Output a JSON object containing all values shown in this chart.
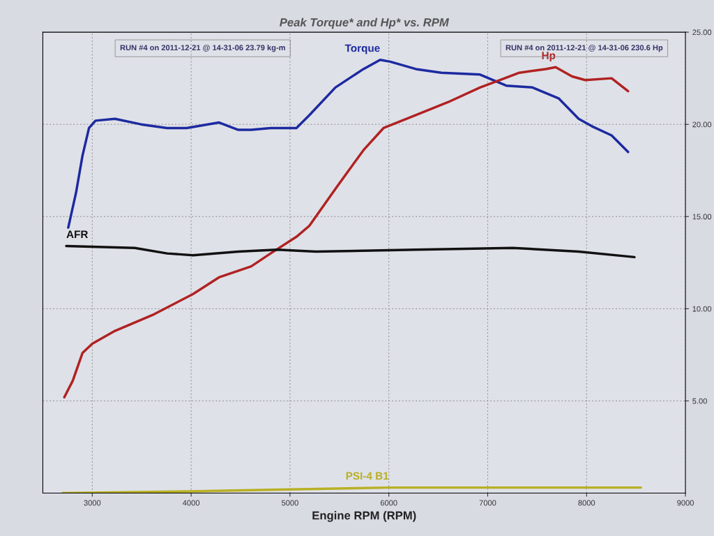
{
  "chart_data": {
    "type": "line",
    "title": "Peak Torque* and Hp* vs. RPM",
    "xlabel": "Engine RPM (RPM)",
    "annotations": [
      "RUN #4 on 2011-12-21 @ 14-31-06 23.79 kg-m",
      "RUN #4 on 2011-12-21 @ 14-31-06 230.6 Hp"
    ],
    "xlim": [
      2500,
      9000
    ],
    "xticks": [
      3000,
      4000,
      5000,
      6000,
      7000,
      8000,
      9000
    ],
    "ylim": [
      0,
      25
    ],
    "yticks": [
      {
        "value": 5,
        "label": "5.00"
      },
      {
        "value": 10,
        "label": "10.00"
      },
      {
        "value": 15,
        "label": "15.00"
      },
      {
        "value": 20,
        "label": "20.00"
      },
      {
        "value": 25,
        "label": "25.00"
      }
    ],
    "grid": true,
    "legend": false,
    "marker": "none",
    "line_style": "solid",
    "series": [
      {
        "name": "Torque",
        "color": "#1c2aa0",
        "x": [
          2757,
          2836,
          2901,
          2967,
          3033,
          3230,
          3493,
          3757,
          3954,
          4283,
          4477,
          4608,
          4804,
          5065,
          5196,
          5459,
          5743,
          5912,
          6014,
          6273,
          6532,
          6922,
          7187,
          7453,
          7720,
          7920,
          8053,
          8253,
          8420
        ],
        "values": [
          14.4,
          16.3,
          18.3,
          19.8,
          20.2,
          20.3,
          20.0,
          19.8,
          19.8,
          20.1,
          19.7,
          19.7,
          19.8,
          19.8,
          20.5,
          22.0,
          23.0,
          23.5,
          23.4,
          23.0,
          22.8,
          22.7,
          22.1,
          22.0,
          21.4,
          20.3,
          19.9,
          19.4,
          18.5
        ]
      },
      {
        "name": "Hp",
        "color": "#b02222",
        "x": [
          2717,
          2803,
          2901,
          3000,
          3230,
          3625,
          4020,
          4281,
          4608,
          4804,
          5065,
          5196,
          5459,
          5743,
          5946,
          6273,
          6597,
          6922,
          7120,
          7320,
          7587,
          7687,
          7853,
          7987,
          8253,
          8420
        ],
        "values": [
          5.2,
          6.1,
          7.6,
          8.1,
          8.8,
          9.7,
          10.8,
          11.7,
          12.3,
          13.0,
          13.9,
          14.5,
          16.5,
          18.6,
          19.8,
          20.5,
          21.2,
          22.0,
          22.4,
          22.8,
          23.0,
          23.1,
          22.6,
          22.4,
          22.5,
          21.8
        ]
      },
      {
        "name": "AFR",
        "color": "#111111",
        "x": [
          2737,
          3428,
          3757,
          4020,
          4477,
          4869,
          5261,
          6273,
          7253,
          7920,
          8484
        ],
        "values": [
          13.4,
          13.3,
          13.0,
          12.9,
          13.1,
          13.2,
          13.1,
          13.2,
          13.3,
          13.1,
          12.8
        ]
      },
      {
        "name": "PSI-4 B1",
        "color": "#b8b024",
        "x": [
          2700,
          4000,
          5000,
          6000,
          7000,
          8000,
          8550
        ],
        "values": [
          0.0,
          0.1,
          0.2,
          0.3,
          0.3,
          0.3,
          0.3
        ]
      }
    ]
  }
}
